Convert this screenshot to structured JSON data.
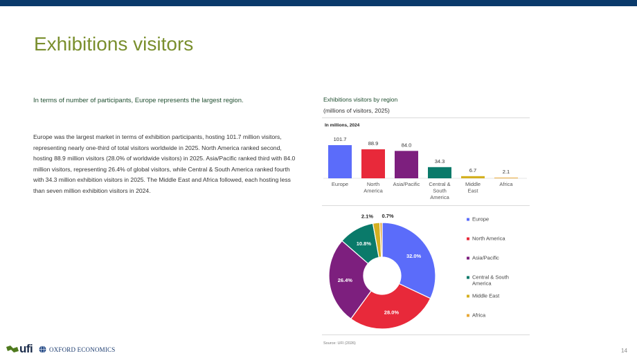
{
  "page": {
    "title": "Exhibitions visitors",
    "lead": "In terms of number of participants, Europe represents the largest region.",
    "body": "Europe was the largest market in terms of exhibition participants, hosting 101.7 million visitors, representing nearly one-third of total visitors worldwide in 2025. North America ranked second, hosting 88.9 million visitors (28.0% of worldwide visitors) in 2025. Asia/Pacific ranked third with 84.0 million visitors, representing 26.4% of global visitors, while Central & South America ranked fourth with 34.3 million exhibition visitors in 2025. The Middle East and Africa followed, each hosting less than seven million exhibition visitors in 2024.",
    "chart_title": "Exhibitions visitors by region",
    "chart_subtitle": "(millions of visitors, 2025)",
    "source": "Source: UFI (2026)",
    "page_number": "14"
  },
  "footer": {
    "logo_ufi": "ufi",
    "logo_oxford": "OXFORD ECONOMICS"
  },
  "colors": {
    "Europe": "#5b6cfa",
    "North America": "#e8293a",
    "Asia/Pacific": "#7d1f7e",
    "Central & South America": "#0a7a6a",
    "Middle East": "#d4b021",
    "Africa": "#e8a838"
  },
  "chart_data": [
    {
      "type": "bar",
      "title": "In millions, 2024",
      "categories": [
        "Europe",
        "North America",
        "Asia/Pacific",
        "Central & South America",
        "Middle East",
        "Africa"
      ],
      "category_lines": [
        [
          "Europe"
        ],
        [
          "North",
          "America"
        ],
        [
          "Asia/Pacific"
        ],
        [
          "Central &",
          "South",
          "America"
        ],
        [
          "Middle",
          "East"
        ],
        [
          "Africa"
        ]
      ],
      "values": [
        101.7,
        88.9,
        84.0,
        34.3,
        6.7,
        2.1
      ],
      "value_labels": [
        "101.7",
        "88.9",
        "84.0",
        "34.3",
        "6.7",
        "2.1"
      ],
      "ylim": [
        0,
        110
      ],
      "grid": false
    },
    {
      "type": "pie",
      "style": "donut",
      "categories": [
        "Europe",
        "North America",
        "Asia/Pacific",
        "Central & South America",
        "Middle East",
        "Africa"
      ],
      "legend_lines": [
        [
          "Europe"
        ],
        [
          "North America"
        ],
        [
          "Asia/Pacific"
        ],
        [
          "Central & South",
          "America"
        ],
        [
          "Middle East"
        ],
        [
          "Africa"
        ]
      ],
      "values": [
        32.0,
        28.0,
        26.4,
        10.8,
        2.1,
        0.7
      ],
      "value_labels": [
        "32.0%",
        "28.0%",
        "26.4%",
        "10.8%",
        "2.1%",
        "0.7%"
      ],
      "legend": "right"
    }
  ]
}
